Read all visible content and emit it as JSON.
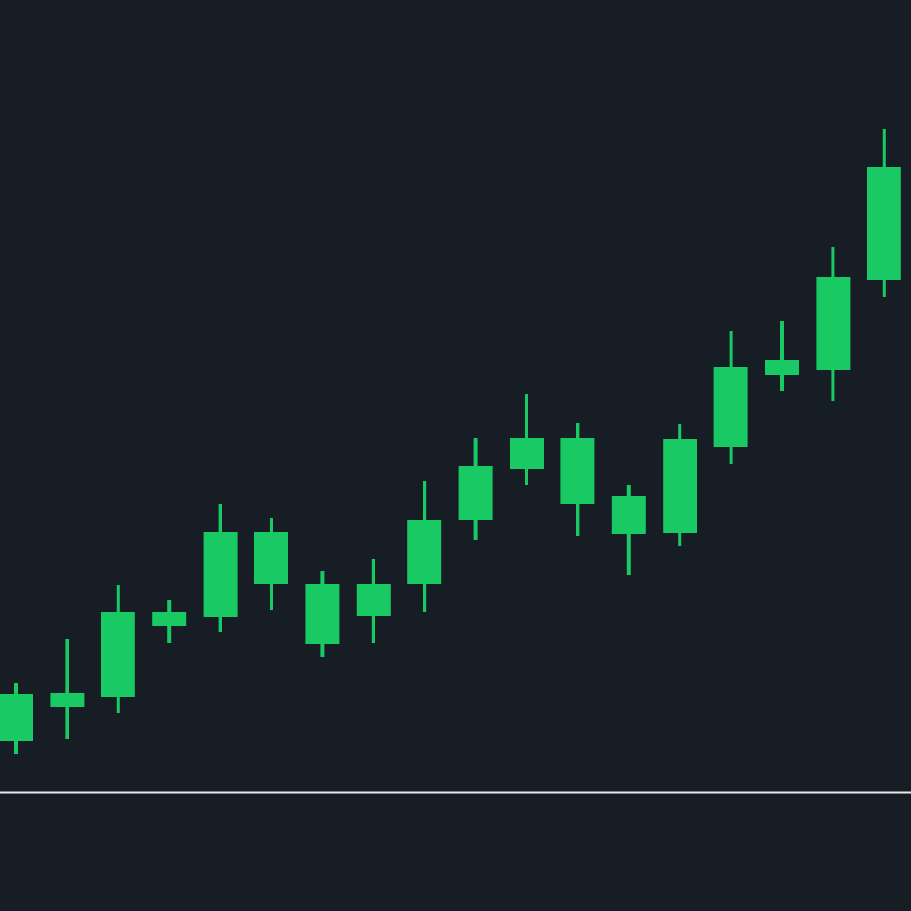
{
  "chart_data": {
    "type": "candlestick",
    "categories": [
      null,
      null,
      null,
      null,
      null,
      null,
      null,
      null,
      null,
      null,
      null,
      null,
      null,
      null,
      null,
      null,
      null,
      null
    ],
    "open": [
      57,
      95,
      107,
      186,
      197,
      233,
      166,
      198,
      233,
      305,
      363,
      324,
      290,
      291,
      388,
      468,
      474,
      575
    ],
    "high": [
      122,
      172,
      232,
      216,
      324,
      308,
      248,
      262,
      349,
      398,
      447,
      415,
      345,
      413,
      518,
      529,
      612,
      745
    ],
    "low": [
      42,
      59,
      89,
      167,
      180,
      204,
      151,
      167,
      202,
      283,
      345,
      287,
      244,
      276,
      368,
      451,
      439,
      556
    ],
    "close": [
      110,
      111,
      202,
      202,
      292,
      292,
      233,
      233,
      305,
      366,
      398,
      398,
      332,
      397,
      478,
      485,
      579,
      702
    ],
    "color": "#19c964",
    "ylim": [
      0,
      890
    ]
  }
}
